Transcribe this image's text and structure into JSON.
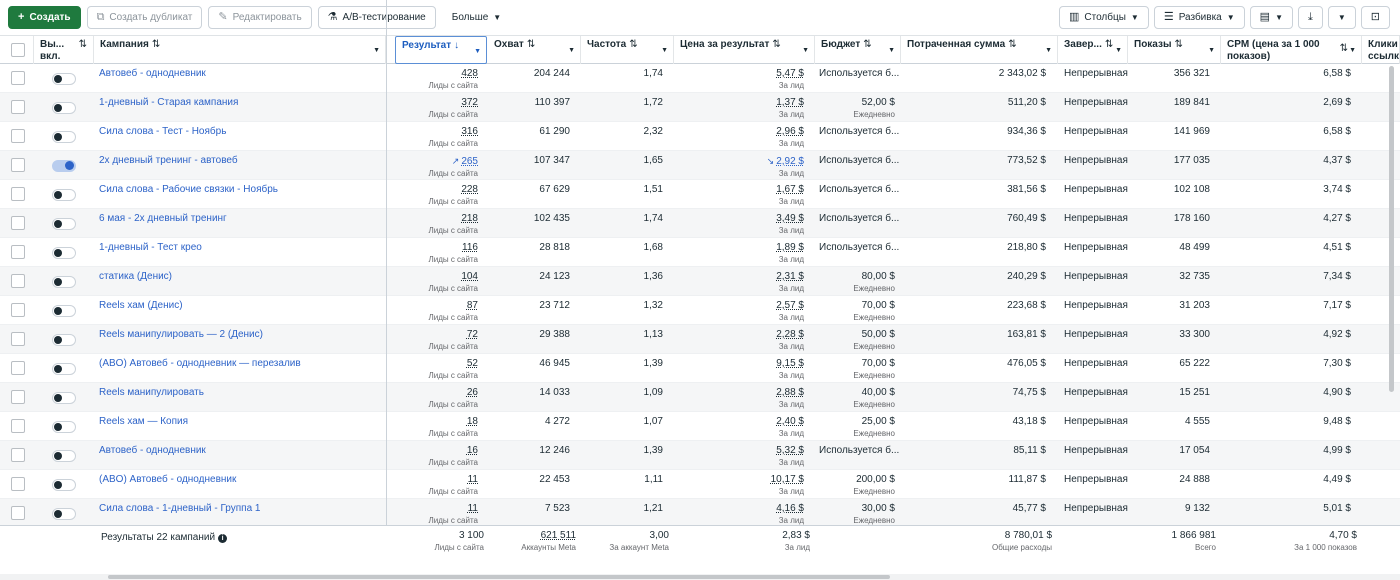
{
  "toolbar": {
    "create_label": "Создать",
    "duplicate_label": "Создать дубликат",
    "edit_label": "Редактировать",
    "ab_label": "A/B-тестирование",
    "more_label": "Больше",
    "columns_label": "Столбцы",
    "breakdown_label": "Разбивка"
  },
  "columns": {
    "onoff": "Вы... вкл.",
    "campaign": "Кампания",
    "result": "Результат",
    "reach": "Охват",
    "frequency": "Частота",
    "cost_per_result": "Цена за результат",
    "budget": "Бюджет",
    "spent": "Потраченная сумма",
    "ends": "Завер...",
    "impressions": "Показы",
    "cpm": "CPM (цена за 1 000 показов)",
    "clicks": "Клики ссылк"
  },
  "rows": [
    {
      "on": false,
      "name": "Автовеб - однодневник",
      "result": "428",
      "result_sub": "Лиды с сайта",
      "reach": "204 244",
      "freq": "1,74",
      "cpr": "5,47 $",
      "cpr_sub": "За лид",
      "budget": "Используется б...",
      "budget_sub": "",
      "spent": "2 343,02 $",
      "ends": "Непрерывная",
      "impr": "356 321",
      "cpm": "6,58 $"
    },
    {
      "on": false,
      "name": "1-дневный - Старая кампания",
      "result": "372",
      "result_sub": "Лиды с сайта",
      "reach": "110 397",
      "freq": "1,72",
      "cpr": "1,37 $",
      "cpr_sub": "За лид",
      "budget": "52,00 $",
      "budget_sub": "Ежедневно",
      "spent": "511,20 $",
      "ends": "Непрерывная",
      "impr": "189 841",
      "cpm": "2,69 $"
    },
    {
      "on": false,
      "name": "Сила слова - Тест - Ноябрь",
      "result": "316",
      "result_sub": "Лиды с сайта",
      "reach": "61 290",
      "freq": "2,32",
      "cpr": "2,96 $",
      "cpr_sub": "За лид",
      "budget": "Используется б...",
      "budget_sub": "",
      "spent": "934,36 $",
      "ends": "Непрерывная",
      "impr": "141 969",
      "cpm": "6,58 $"
    },
    {
      "on": true,
      "name": "2х дневный тренинг - автовеб",
      "result": "265",
      "result_sub": "Лиды с сайта",
      "reach": "107 347",
      "freq": "1,65",
      "cpr": "2,92 $",
      "cpr_sub": "За лид",
      "budget": "Используется б...",
      "budget_sub": "",
      "spent": "773,52 $",
      "ends": "Непрерывная",
      "impr": "177 035",
      "cpm": "4,37 $",
      "trend": true
    },
    {
      "on": false,
      "name": "Сила слова - Рабочие связки - Ноябрь",
      "result": "228",
      "result_sub": "Лиды с сайта",
      "reach": "67 629",
      "freq": "1,51",
      "cpr": "1,67 $",
      "cpr_sub": "За лид",
      "budget": "Используется б...",
      "budget_sub": "",
      "spent": "381,56 $",
      "ends": "Непрерывная",
      "impr": "102 108",
      "cpm": "3,74 $"
    },
    {
      "on": false,
      "name": "6 мая - 2х дневный тренинг",
      "result": "218",
      "result_sub": "Лиды с сайта",
      "reach": "102 435",
      "freq": "1,74",
      "cpr": "3,49 $",
      "cpr_sub": "За лид",
      "budget": "Используется б...",
      "budget_sub": "",
      "spent": "760,49 $",
      "ends": "Непрерывная",
      "impr": "178 160",
      "cpm": "4,27 $"
    },
    {
      "on": false,
      "name": "1-дневный - Тест крео",
      "result": "116",
      "result_sub": "Лиды с сайта",
      "reach": "28 818",
      "freq": "1,68",
      "cpr": "1,89 $",
      "cpr_sub": "За лид",
      "budget": "Используется б...",
      "budget_sub": "",
      "spent": "218,80 $",
      "ends": "Непрерывная",
      "impr": "48 499",
      "cpm": "4,51 $"
    },
    {
      "on": false,
      "name": "статика (Денис)",
      "result": "104",
      "result_sub": "Лиды с сайта",
      "reach": "24 123",
      "freq": "1,36",
      "cpr": "2,31 $",
      "cpr_sub": "За лид",
      "budget": "80,00 $",
      "budget_sub": "Ежедневно",
      "spent": "240,29 $",
      "ends": "Непрерывная",
      "impr": "32 735",
      "cpm": "7,34 $"
    },
    {
      "on": false,
      "name": "Reels хам (Денис)",
      "result": "87",
      "result_sub": "Лиды с сайта",
      "reach": "23 712",
      "freq": "1,32",
      "cpr": "2,57 $",
      "cpr_sub": "За лид",
      "budget": "70,00 $",
      "budget_sub": "Ежедневно",
      "spent": "223,68 $",
      "ends": "Непрерывная",
      "impr": "31 203",
      "cpm": "7,17 $"
    },
    {
      "on": false,
      "name": "Reels манипулировать — 2 (Денис)",
      "result": "72",
      "result_sub": "Лиды с сайта",
      "reach": "29 388",
      "freq": "1,13",
      "cpr": "2,28 $",
      "cpr_sub": "За лид",
      "budget": "50,00 $",
      "budget_sub": "Ежедневно",
      "spent": "163,81 $",
      "ends": "Непрерывная",
      "impr": "33 300",
      "cpm": "4,92 $"
    },
    {
      "on": false,
      "name": "(ABO) Автовеб - однодневник — перезалив",
      "result": "52",
      "result_sub": "Лиды с сайта",
      "reach": "46 945",
      "freq": "1,39",
      "cpr": "9,15 $",
      "cpr_sub": "За лид",
      "budget": "70,00 $",
      "budget_sub": "Ежедневно",
      "spent": "476,05 $",
      "ends": "Непрерывная",
      "impr": "65 222",
      "cpm": "7,30 $"
    },
    {
      "on": false,
      "name": "Reels манипулировать",
      "result": "26",
      "result_sub": "Лиды с сайта",
      "reach": "14 033",
      "freq": "1,09",
      "cpr": "2,88 $",
      "cpr_sub": "За лид",
      "budget": "40,00 $",
      "budget_sub": "Ежедневно",
      "spent": "74,75 $",
      "ends": "Непрерывная",
      "impr": "15 251",
      "cpm": "4,90 $"
    },
    {
      "on": false,
      "name": "Reels хам — Копия",
      "result": "18",
      "result_sub": "Лиды с сайта",
      "reach": "4 272",
      "freq": "1,07",
      "cpr": "2,40 $",
      "cpr_sub": "За лид",
      "budget": "25,00 $",
      "budget_sub": "Ежедневно",
      "spent": "43,18 $",
      "ends": "Непрерывная",
      "impr": "4 555",
      "cpm": "9,48 $"
    },
    {
      "on": false,
      "name": "Автовеб - однодневник",
      "result": "16",
      "result_sub": "Лиды с сайта",
      "reach": "12 246",
      "freq": "1,39",
      "cpr": "5,32 $",
      "cpr_sub": "За лид",
      "budget": "Используется б...",
      "budget_sub": "",
      "spent": "85,11 $",
      "ends": "Непрерывная",
      "impr": "17 054",
      "cpm": "4,99 $"
    },
    {
      "on": false,
      "name": "(ABO) Автовеб - однодневник",
      "result": "11",
      "result_sub": "Лиды с сайта",
      "reach": "22 453",
      "freq": "1,11",
      "cpr": "10,17 $",
      "cpr_sub": "За лид",
      "budget": "200,00 $",
      "budget_sub": "Ежедневно",
      "spent": "111,87 $",
      "ends": "Непрерывная",
      "impr": "24 888",
      "cpm": "4,49 $"
    },
    {
      "on": false,
      "name": "Сила слова - 1-дневный - Группа 1",
      "result": "11",
      "result_sub": "Лиды с сайта",
      "reach": "7 523",
      "freq": "1,21",
      "cpr": "4,16 $",
      "cpr_sub": "За лид",
      "budget": "30,00 $",
      "budget_sub": "Ежедневно",
      "spent": "45,77 $",
      "ends": "Непрерывная",
      "impr": "9 132",
      "cpm": "5,01 $"
    }
  ],
  "totals": {
    "label": "Результаты 22 кампаний",
    "result": "3 100",
    "result_sub": "Лиды с сайта",
    "reach": "621 511",
    "reach_sub": "Аккаунты Meta",
    "freq": "3,00",
    "freq_sub": "За аккаунт Meta",
    "cpr": "2,83 $",
    "cpr_sub": "За лид",
    "spent": "8 780,01 $",
    "spent_sub": "Общие расходы",
    "impr": "1 866 981",
    "impr_sub": "Всего",
    "cpm": "4,70 $",
    "cpm_sub": "За 1 000 показов"
  }
}
